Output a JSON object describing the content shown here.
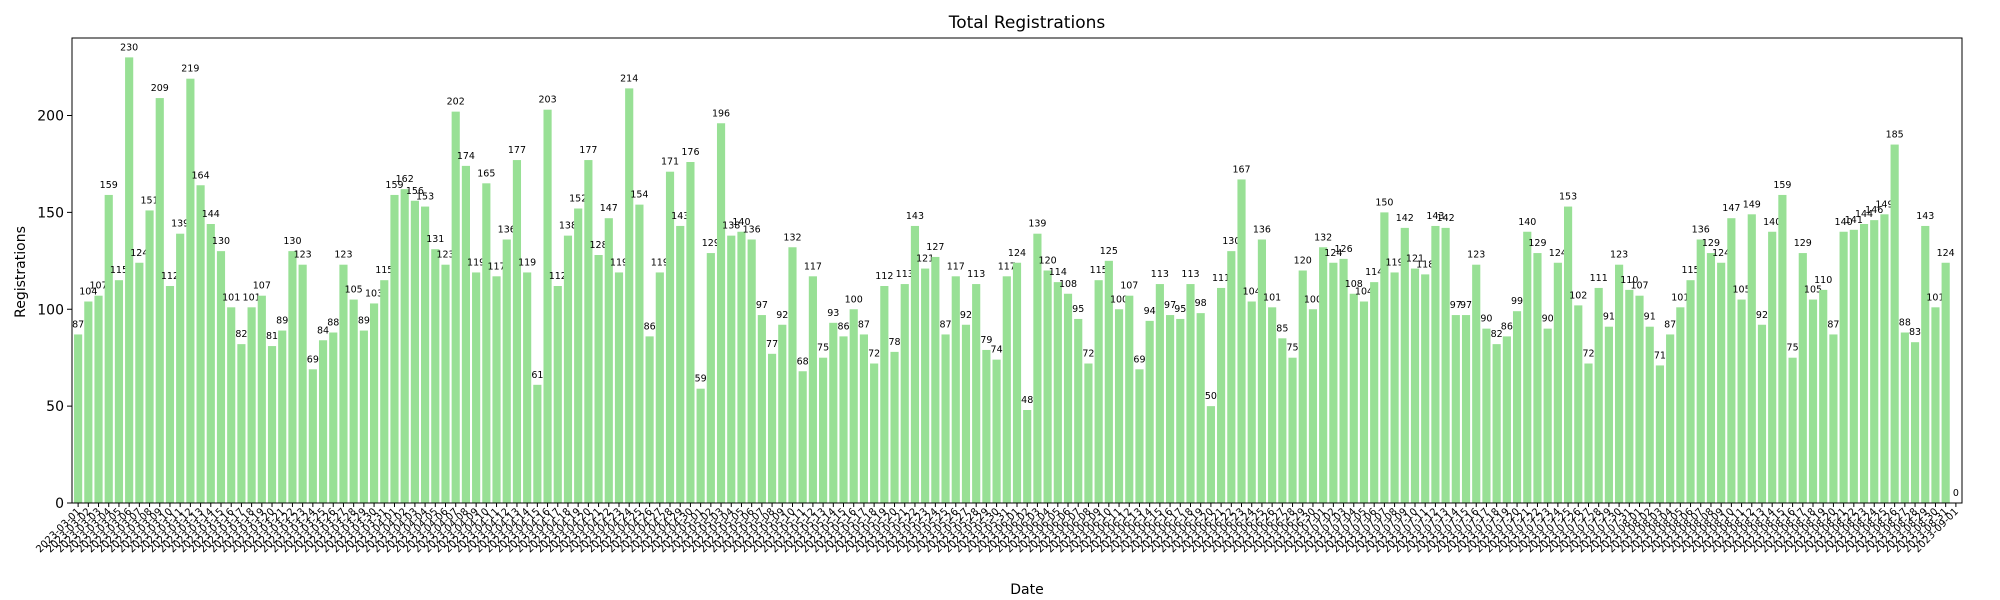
{
  "chart_data": {
    "type": "bar",
    "title": "Total Registrations",
    "xlabel": "Date",
    "ylabel": "Registrations",
    "ylim": [
      0,
      240
    ],
    "yticks": [
      0,
      50,
      100,
      150,
      200
    ],
    "bar_color": "#98e095",
    "grid": false,
    "start_date": "2023-03-01",
    "end_date": "2023-09-01",
    "values": [
      87,
      104,
      107,
      159,
      115,
      230,
      124,
      151,
      209,
      112,
      139,
      219,
      164,
      144,
      130,
      101,
      82,
      101,
      107,
      81,
      89,
      130,
      123,
      69,
      84,
      88,
      123,
      105,
      89,
      103,
      115,
      159,
      162,
      156,
      153,
      131,
      123,
      202,
      174,
      119,
      165,
      117,
      136,
      177,
      119,
      61,
      203,
      112,
      138,
      152,
      177,
      128,
      147,
      119,
      214,
      154,
      86,
      119,
      171,
      143,
      176,
      59,
      129,
      196,
      138,
      140,
      136,
      97,
      77,
      92,
      132,
      68,
      117,
      75,
      93,
      86,
      100,
      87,
      72,
      112,
      78,
      113,
      143,
      121,
      127,
      87,
      117,
      92,
      113,
      79,
      74,
      117,
      124,
      48,
      139,
      120,
      114,
      108,
      95,
      72,
      115,
      125,
      100,
      107,
      69,
      94,
      113,
      97,
      95,
      113,
      98,
      50,
      111,
      130,
      167,
      104,
      136,
      101,
      85,
      75,
      120,
      100,
      132,
      124,
      126,
      108,
      104,
      114,
      150,
      119,
      142,
      121,
      118,
      143,
      142,
      97,
      97,
      123,
      90,
      82,
      86,
      99,
      140,
      129,
      90,
      124,
      153,
      102,
      72,
      111,
      91,
      123,
      110,
      107,
      91,
      71,
      87,
      101,
      115,
      136,
      129,
      124,
      147,
      105,
      149,
      92,
      140,
      159,
      75,
      129,
      105,
      110,
      87,
      140,
      141,
      144,
      146,
      149,
      185,
      88,
      83,
      143,
      101,
      124,
      0
    ]
  }
}
